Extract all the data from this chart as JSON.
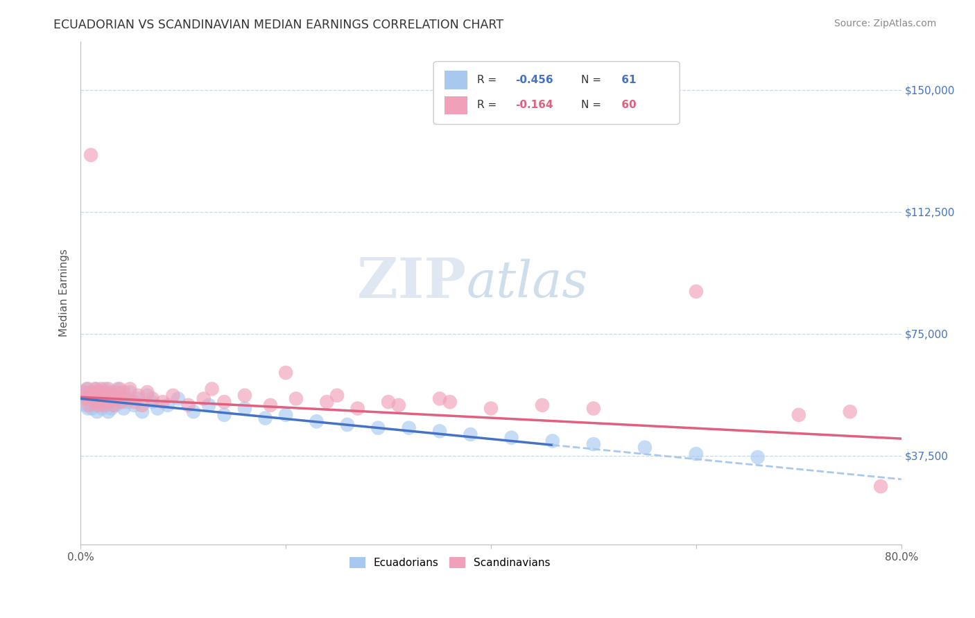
{
  "title": "ECUADORIAN VS SCANDINAVIAN MEDIAN EARNINGS CORRELATION CHART",
  "source": "Source: ZipAtlas.com",
  "ylabel": "Median Earnings",
  "x_min": 0.0,
  "x_max": 0.8,
  "y_min": 10000,
  "y_max": 165000,
  "yticks": [
    37500,
    75000,
    112500,
    150000
  ],
  "ytick_labels": [
    "$37,500",
    "$75,000",
    "$112,500",
    "$150,000"
  ],
  "xticks": [
    0.0,
    0.2,
    0.4,
    0.6,
    0.8
  ],
  "xtick_labels": [
    "0.0%",
    "",
    "",
    "",
    "80.0%"
  ],
  "color_blue": "#a8c8f0",
  "color_pink": "#f0a0b8",
  "color_blue_line": "#4472c4",
  "color_pink_line": "#e06080",
  "color_dashed_line": "#a8c8f0",
  "color_grid": "#c8d8e8",
  "background_color": "#ffffff",
  "watermark_zip": "ZIP",
  "watermark_atlas": "atlas",
  "ecu_r": "-0.456",
  "ecu_n": "61",
  "sca_r": "-0.164",
  "sca_n": "60",
  "ecuadorians_x": [
    0.003,
    0.005,
    0.006,
    0.007,
    0.008,
    0.009,
    0.01,
    0.011,
    0.012,
    0.013,
    0.014,
    0.015,
    0.016,
    0.017,
    0.018,
    0.019,
    0.02,
    0.021,
    0.022,
    0.023,
    0.024,
    0.025,
    0.026,
    0.027,
    0.028,
    0.029,
    0.03,
    0.032,
    0.034,
    0.036,
    0.038,
    0.04,
    0.042,
    0.045,
    0.048,
    0.052,
    0.056,
    0.06,
    0.065,
    0.07,
    0.075,
    0.085,
    0.095,
    0.11,
    0.125,
    0.14,
    0.16,
    0.18,
    0.2,
    0.23,
    0.26,
    0.29,
    0.32,
    0.35,
    0.38,
    0.42,
    0.46,
    0.5,
    0.55,
    0.6,
    0.66
  ],
  "ecuadorians_y": [
    56000,
    53000,
    58000,
    52000,
    55000,
    57000,
    54000,
    52000,
    56000,
    53000,
    58000,
    55000,
    51000,
    54000,
    57000,
    53000,
    55000,
    52000,
    56000,
    54000,
    58000,
    53000,
    55000,
    51000,
    57000,
    54000,
    52000,
    56000,
    53000,
    58000,
    54000,
    56000,
    52000,
    54000,
    57000,
    53000,
    55000,
    51000,
    56000,
    54000,
    52000,
    53000,
    55000,
    51000,
    53000,
    50000,
    52000,
    49000,
    50000,
    48000,
    47000,
    46000,
    46000,
    45000,
    44000,
    43000,
    42000,
    41000,
    40000,
    38000,
    37000
  ],
  "scandinavians_x": [
    0.003,
    0.005,
    0.007,
    0.008,
    0.009,
    0.01,
    0.011,
    0.012,
    0.014,
    0.015,
    0.016,
    0.017,
    0.018,
    0.019,
    0.02,
    0.021,
    0.022,
    0.023,
    0.025,
    0.026,
    0.027,
    0.028,
    0.03,
    0.032,
    0.034,
    0.036,
    0.038,
    0.04,
    0.042,
    0.045,
    0.048,
    0.052,
    0.056,
    0.06,
    0.065,
    0.07,
    0.08,
    0.09,
    0.105,
    0.12,
    0.14,
    0.16,
    0.185,
    0.21,
    0.24,
    0.27,
    0.31,
    0.36,
    0.4,
    0.45,
    0.2,
    0.25,
    0.3,
    0.35,
    0.128,
    0.5,
    0.6,
    0.7,
    0.75,
    0.78
  ],
  "scandinavians_y": [
    57000,
    55000,
    58000,
    53000,
    56000,
    130000,
    55000,
    57000,
    54000,
    58000,
    56000,
    53000,
    57000,
    55000,
    58000,
    54000,
    56000,
    53000,
    57000,
    55000,
    58000,
    54000,
    56000,
    53000,
    57000,
    55000,
    58000,
    54000,
    57000,
    55000,
    58000,
    54000,
    56000,
    53000,
    57000,
    55000,
    54000,
    56000,
    53000,
    55000,
    54000,
    56000,
    53000,
    55000,
    54000,
    52000,
    53000,
    54000,
    52000,
    53000,
    63000,
    56000,
    54000,
    55000,
    58000,
    52000,
    88000,
    50000,
    51000,
    28000
  ]
}
